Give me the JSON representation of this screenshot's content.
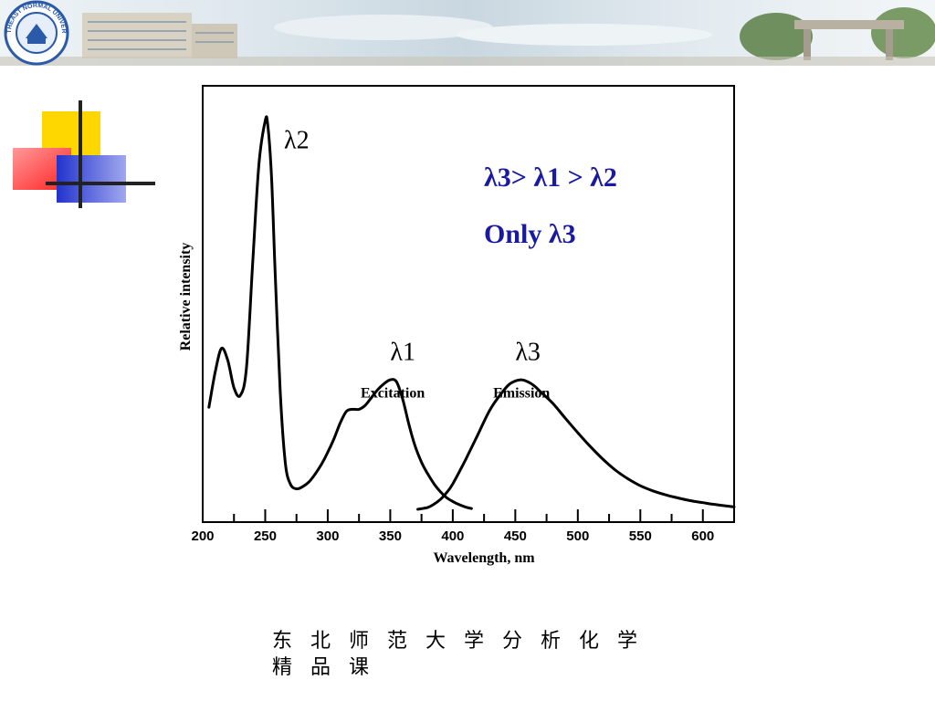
{
  "banner": {
    "logo_text": "NORTHEAST NORMAL UNIVERSITY",
    "colors": {
      "sky": "#c9d7e0",
      "building": "#d9d2c3",
      "trees": "#6f8f5f"
    }
  },
  "decoration": {
    "icon": "color-block-cross-icon",
    "colors": {
      "yellow": "#ffd700",
      "red": "#ff3333",
      "blue": "#2233cc",
      "line": "#222222"
    }
  },
  "chart_data": {
    "type": "line",
    "xlabel": "Wavelength, nm",
    "ylabel": "Relative intensity",
    "xlim": [
      200,
      625
    ],
    "ylim": [
      0,
      1
    ],
    "x_ticks": [
      200,
      250,
      300,
      350,
      400,
      450,
      500,
      550,
      600
    ],
    "grid": false,
    "series": [
      {
        "name": "Excitation",
        "x": [
          205,
          210,
          215,
          220,
          225,
          230,
          235,
          240,
          245,
          250,
          252,
          255,
          258,
          262,
          266,
          270,
          275,
          280,
          285,
          290,
          295,
          300,
          305,
          310,
          315,
          320,
          325,
          330,
          335,
          340,
          345,
          350,
          355,
          360,
          365,
          370,
          375,
          380,
          385,
          390,
          395,
          400,
          405,
          410,
          415
        ],
        "y": [
          0.26,
          0.35,
          0.41,
          0.38,
          0.31,
          0.29,
          0.36,
          0.63,
          0.88,
          0.99,
          0.98,
          0.85,
          0.6,
          0.3,
          0.12,
          0.065,
          0.052,
          0.058,
          0.07,
          0.09,
          0.115,
          0.145,
          0.18,
          0.22,
          0.25,
          0.255,
          0.255,
          0.265,
          0.285,
          0.305,
          0.32,
          0.33,
          0.325,
          0.28,
          0.215,
          0.16,
          0.12,
          0.09,
          0.065,
          0.045,
          0.03,
          0.02,
          0.012,
          0.006,
          0.002
        ]
      },
      {
        "name": "Emission",
        "x": [
          372,
          380,
          385,
          390,
          395,
          400,
          410,
          420,
          430,
          440,
          445,
          450,
          455,
          460,
          465,
          470,
          480,
          490,
          500,
          510,
          520,
          530,
          540,
          550,
          560,
          570,
          580,
          590,
          600,
          610,
          625
        ],
        "y": [
          0.0,
          0.005,
          0.013,
          0.025,
          0.042,
          0.065,
          0.125,
          0.19,
          0.255,
          0.3,
          0.318,
          0.327,
          0.33,
          0.325,
          0.315,
          0.3,
          0.27,
          0.232,
          0.195,
          0.16,
          0.128,
          0.1,
          0.078,
          0.06,
          0.047,
          0.037,
          0.029,
          0.022,
          0.017,
          0.012,
          0.006
        ]
      }
    ],
    "annotations": [
      {
        "text": "λ2",
        "x": 265,
        "y": 0.92
      },
      {
        "text": "λ1",
        "x": 350,
        "y": 0.38
      },
      {
        "text": "λ3",
        "x": 450,
        "y": 0.38
      },
      {
        "text": "Excitation",
        "x": 352,
        "y": 0.285
      },
      {
        "text": "Emission",
        "x": 455,
        "y": 0.285
      }
    ],
    "notes": {
      "order": "λ3> λ1 > λ2",
      "only": "Only λ3",
      "color": "#1a1aa0"
    }
  },
  "caption": {
    "line1": "东北师范大学分析化学",
    "line2": "精品课"
  }
}
